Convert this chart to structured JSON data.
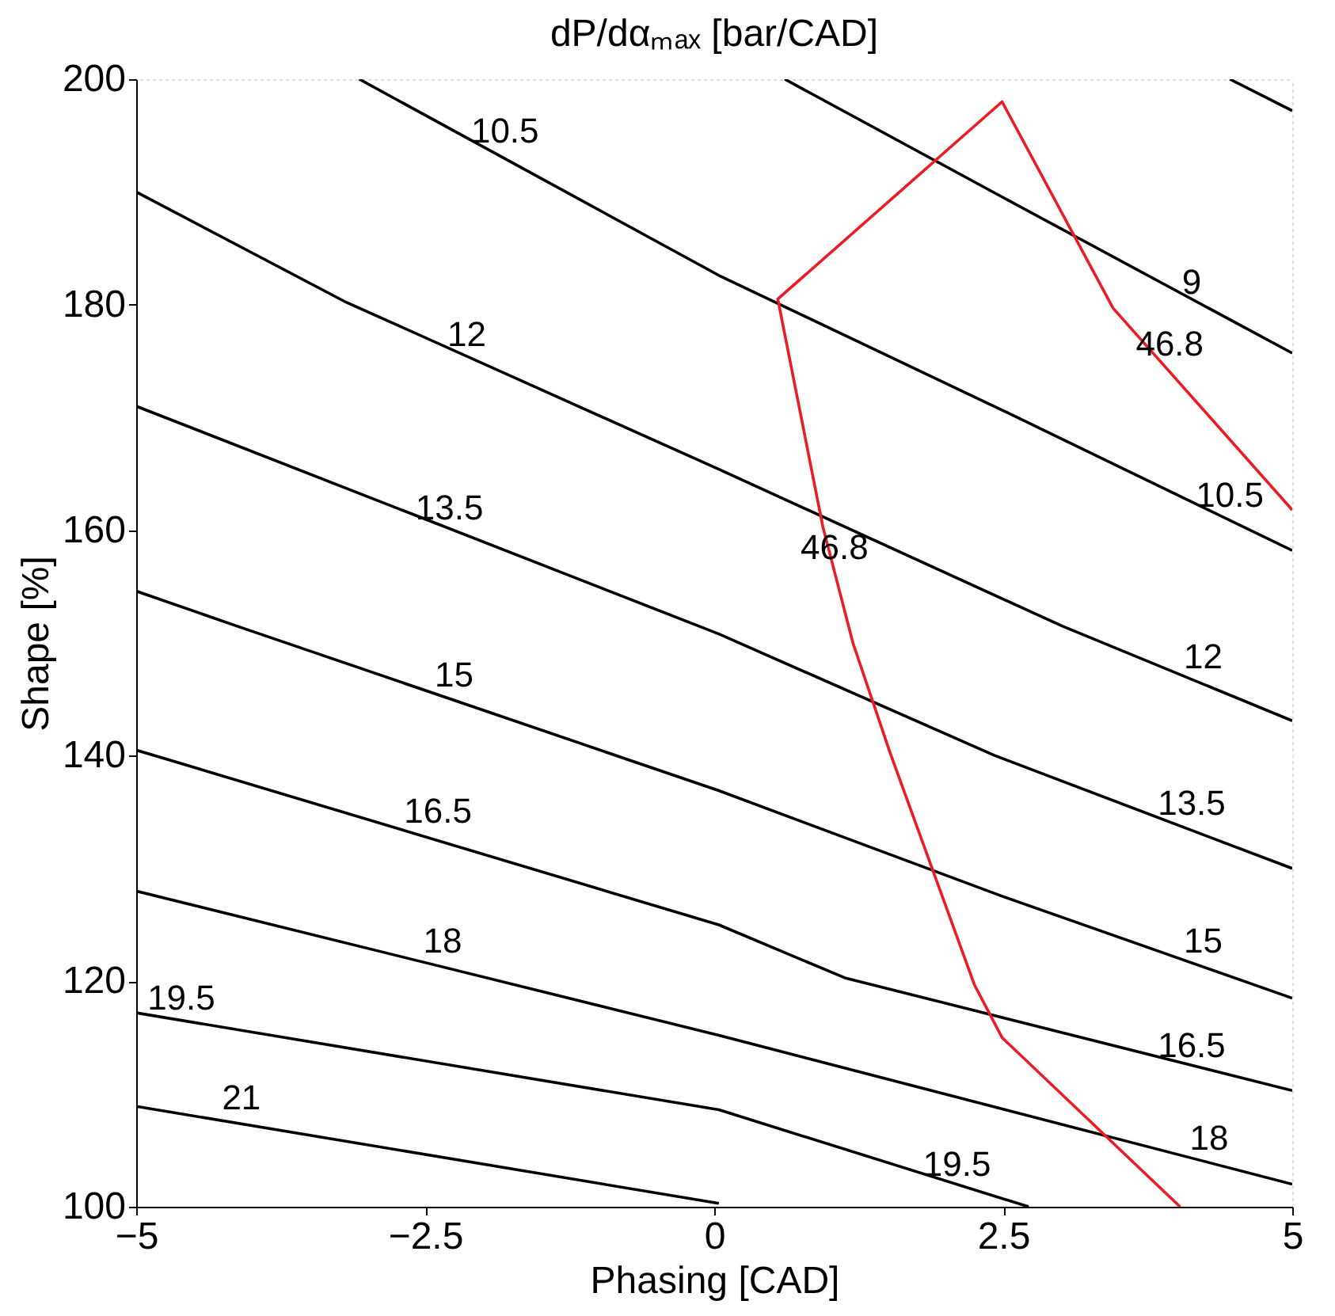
{
  "chart_data": {
    "type": "line",
    "title": "dP/dαₘₐₓ [bar/CAD]",
    "xlabel": "Phasing [CAD]",
    "ylabel": "Shape [%]",
    "xlim": [
      -5,
      5
    ],
    "ylim": [
      100,
      200
    ],
    "xticks": [
      {
        "value": -5,
        "label": "−5"
      },
      {
        "value": -2.5,
        "label": "−2.5"
      },
      0,
      2.5,
      5
    ],
    "yticks": [
      100,
      120,
      140,
      160,
      180,
      200
    ],
    "grid": true,
    "marker": "none",
    "line_style": "solid",
    "series": [
      {
        "color": "#000000",
        "x": [
          4.46,
          5
        ],
        "values": [
          200,
          197.2
        ]
      },
      {
        "color": "#000000",
        "x": [
          0.61,
          2.5,
          5
        ],
        "values": [
          200,
          189.5,
          175.7
        ]
      },
      {
        "color": "#000000",
        "x": [
          -3.07,
          0.04,
          2.5,
          5
        ],
        "values": [
          200,
          182.6,
          170.6,
          158.2
        ]
      },
      {
        "color": "#000000",
        "x": [
          -5,
          -3.2,
          0.04,
          3.01,
          5
        ],
        "values": [
          190,
          180.3,
          165.4,
          151.5,
          143.1
        ]
      },
      {
        "color": "#000000",
        "x": [
          -5,
          0.04,
          2.43,
          5
        ],
        "values": [
          171,
          150.8,
          140,
          130
        ]
      },
      {
        "color": "#000000",
        "x": [
          -5,
          -4.13,
          0.04,
          2.5,
          5
        ],
        "values": [
          154.6,
          151.5,
          136.9,
          127.5,
          118.5
        ]
      },
      {
        "color": "#000000",
        "x": [
          -5,
          0.04,
          1.13,
          5
        ],
        "values": [
          140.5,
          125,
          120.3,
          110.3
        ]
      },
      {
        "color": "#000000",
        "x": [
          -5,
          0.04,
          5
        ],
        "values": [
          128,
          115.2,
          102
        ]
      },
      {
        "color": "#000000",
        "x": [
          -5,
          0.04,
          2.72
        ],
        "values": [
          117.2,
          108.6,
          100
        ]
      },
      {
        "color": "#000000",
        "x": [
          -5,
          0.04
        ],
        "values": [
          108.9,
          100.3
        ]
      },
      {
        "color": "#ed1c24",
        "x": [
          4.03,
          2.49,
          2.25,
          1.52,
          1.2,
          0.94,
          0.55,
          2.49,
          3.45,
          5
        ],
        "values": [
          100,
          115,
          119.7,
          140.3,
          150,
          160.3,
          180.5,
          198,
          179.7,
          161.8
        ]
      }
    ],
    "annotations": [
      {
        "text": "9",
        "x": 4.13,
        "y": 179.7
      },
      {
        "text": "10.5",
        "x": -1.81,
        "y": 193.1
      },
      {
        "text": "10.5",
        "x": 4.46,
        "y": 160.8
      },
      {
        "text": "12",
        "x": -2.14,
        "y": 175.1
      },
      {
        "text": "12",
        "x": 4.23,
        "y": 146.5
      },
      {
        "text": "13.5",
        "x": -2.29,
        "y": 159.7
      },
      {
        "text": "13.5",
        "x": 4.13,
        "y": 133.5
      },
      {
        "text": "15",
        "x": -2.25,
        "y": 144.9
      },
      {
        "text": "15",
        "x": 4.23,
        "y": 121.3
      },
      {
        "text": "16.5",
        "x": -2.39,
        "y": 132.8
      },
      {
        "text": "16.5",
        "x": 4.13,
        "y": 112
      },
      {
        "text": "18",
        "x": -2.35,
        "y": 121.3
      },
      {
        "text": "18",
        "x": 4.28,
        "y": 103.8
      },
      {
        "text": "19.5",
        "x": -4.61,
        "y": 116.2
      },
      {
        "text": "19.5",
        "x": 2.1,
        "y": 101.5
      },
      {
        "text": "21",
        "x": -4.09,
        "y": 107.4
      },
      {
        "text": "46.8",
        "x": 3.94,
        "y": 174.2
      },
      {
        "text": "46.8",
        "x": 1.04,
        "y": 156.2
      }
    ]
  }
}
